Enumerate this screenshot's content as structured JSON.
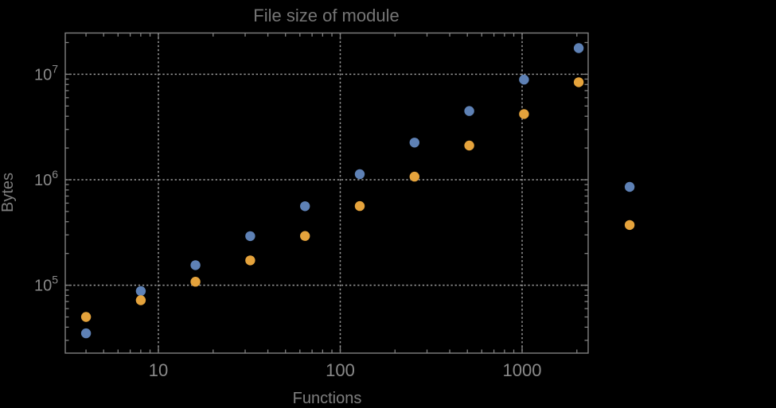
{
  "colors": {
    "background": "#000000",
    "frame": "#818181",
    "grid": "#9b9b9b",
    "tick": "#818181",
    "title_text": "#757575",
    "axis_label_text": "#7f7f7f",
    "tick_label_text": "#8a8a8a",
    "series_blue": "#5e81b5",
    "series_orange": "#e5a33c"
  },
  "chart_data": {
    "type": "scatter",
    "title": "File size of module",
    "xlabel": "Functions",
    "ylabel": "Bytes",
    "x_scale": "log",
    "y_scale": "log",
    "xlim": [
      3.05,
      2310
    ],
    "ylim": [
      22700,
      24600000
    ],
    "grid": "dotted gray lines at decade ticks, frame box with inward log minor ticks",
    "legend": "none",
    "plot_range_clipping": false,
    "x_ticks": [
      {
        "value": 10,
        "label": "10"
      },
      {
        "value": 100,
        "label": "100"
      },
      {
        "value": 1000,
        "label": "1000"
      }
    ],
    "y_ticks": [
      {
        "value": 100000,
        "base": "10",
        "exp": "5"
      },
      {
        "value": 1000000,
        "base": "10",
        "exp": "6"
      },
      {
        "value": 10000000,
        "base": "10",
        "exp": "7"
      }
    ],
    "series": [
      {
        "name": "blue",
        "color": "#5e81b5",
        "points": [
          [
            4,
            35000
          ],
          [
            8,
            88000
          ],
          [
            16,
            155000
          ],
          [
            32,
            292000
          ],
          [
            64,
            561000
          ],
          [
            128,
            1130000
          ],
          [
            256,
            2250000
          ],
          [
            512,
            4480000
          ],
          [
            1024,
            8900000
          ],
          [
            2048,
            17700000
          ],
          [
            3900,
            855000
          ]
        ]
      },
      {
        "name": "orange",
        "color": "#e5a33c",
        "points": [
          [
            4,
            50000
          ],
          [
            8,
            72000
          ],
          [
            16,
            108000
          ],
          [
            32,
            172000
          ],
          [
            64,
            293000
          ],
          [
            128,
            563000
          ],
          [
            256,
            1070000
          ],
          [
            512,
            2110000
          ],
          [
            1024,
            4200000
          ],
          [
            2048,
            8400000
          ],
          [
            3900,
            372000
          ]
        ]
      }
    ]
  }
}
